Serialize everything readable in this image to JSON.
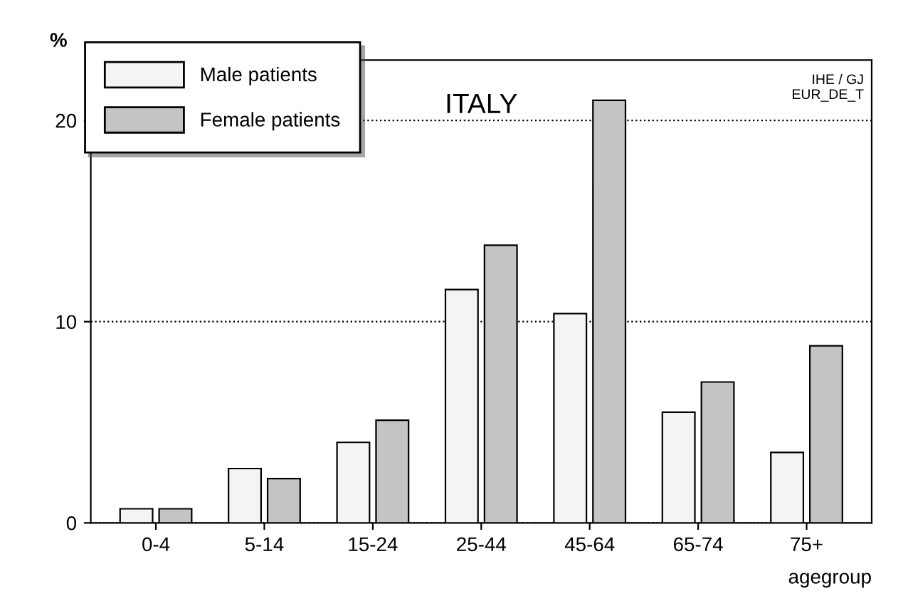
{
  "chart_data": {
    "type": "bar",
    "title": "ITALY",
    "ylabel": "%",
    "xlabel": "agegroup",
    "categories": [
      "0-4",
      "5-14",
      "15-24",
      "25-44",
      "45-64",
      "65-74",
      "75+"
    ],
    "series": [
      {
        "name": "Male patients",
        "color": "#f4f4f4",
        "values": [
          0.7,
          2.7,
          4.0,
          11.6,
          10.4,
          5.5,
          3.5
        ]
      },
      {
        "name": "Female patients",
        "color": "#c4c4c4",
        "values": [
          0.7,
          2.2,
          5.1,
          13.8,
          21.0,
          7.0,
          8.8
        ]
      }
    ],
    "ylim": [
      0,
      23
    ],
    "yticks": [
      0,
      10,
      20
    ],
    "grid": "y",
    "legend": "top left",
    "annotations": [
      "IHE / GJ\nEUR_DE_T"
    ]
  }
}
